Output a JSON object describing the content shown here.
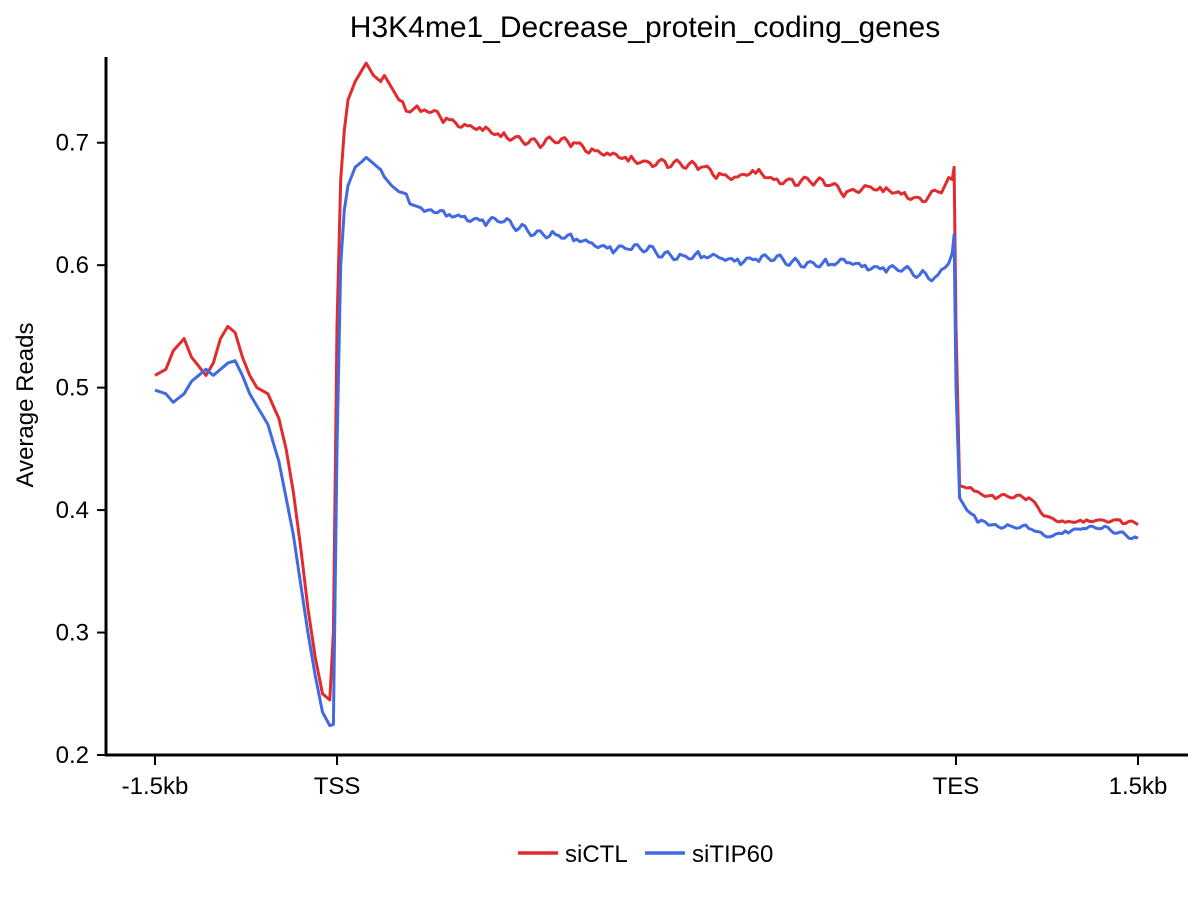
{
  "chart_data": {
    "type": "line",
    "title": "H3K4me1_Decrease_protein_coding_genes",
    "xlabel": "",
    "ylabel": "Average Reads",
    "x_ticks": [
      {
        "label": "-1.5kb",
        "pos": 0
      },
      {
        "label": "TSS",
        "pos": 50
      },
      {
        "label": "TES",
        "pos": 220
      },
      {
        "label": "1.5kb",
        "pos": 270
      }
    ],
    "x_range": [
      0,
      270
    ],
    "y_ticks": [
      0.2,
      0.3,
      0.4,
      0.5,
      0.6,
      0.7
    ],
    "ylim": [
      0.2,
      0.77
    ],
    "grid": false,
    "legend_position": "bottom",
    "series": [
      {
        "name": "siCTL",
        "color": "#e02b2f",
        "x": [
          0,
          3,
          5,
          8,
          10,
          14,
          16,
          18,
          20,
          22,
          24,
          26,
          28,
          31,
          34,
          36,
          38,
          40,
          42,
          44,
          46,
          48,
          49,
          50,
          51,
          52,
          53,
          55,
          57,
          58,
          60,
          62,
          63,
          65,
          67,
          70,
          72,
          75,
          80,
          85,
          90,
          95,
          100,
          105,
          110,
          115,
          120,
          125,
          130,
          135,
          140,
          145,
          150,
          155,
          160,
          165,
          170,
          175,
          180,
          185,
          190,
          195,
          200,
          205,
          210,
          215,
          219,
          219.5,
          220,
          221,
          223,
          226,
          230,
          235,
          240,
          245,
          250,
          255,
          260,
          265,
          270
        ],
        "values": [
          0.51,
          0.515,
          0.53,
          0.54,
          0.525,
          0.51,
          0.52,
          0.54,
          0.55,
          0.545,
          0.525,
          0.51,
          0.5,
          0.495,
          0.475,
          0.45,
          0.415,
          0.37,
          0.32,
          0.28,
          0.25,
          0.245,
          0.3,
          0.55,
          0.67,
          0.71,
          0.735,
          0.75,
          0.76,
          0.765,
          0.755,
          0.75,
          0.755,
          0.745,
          0.735,
          0.725,
          0.73,
          0.725,
          0.72,
          0.715,
          0.71,
          0.705,
          0.705,
          0.7,
          0.7,
          0.7,
          0.695,
          0.69,
          0.685,
          0.685,
          0.685,
          0.68,
          0.68,
          0.675,
          0.672,
          0.675,
          0.67,
          0.67,
          0.668,
          0.665,
          0.66,
          0.665,
          0.66,
          0.658,
          0.655,
          0.66,
          0.67,
          0.68,
          0.55,
          0.42,
          0.418,
          0.415,
          0.412,
          0.41,
          0.41,
          0.395,
          0.39,
          0.39,
          0.392,
          0.392,
          0.388
        ]
      },
      {
        "name": "siTIP60",
        "color": "#4169e1",
        "x": [
          0,
          3,
          5,
          8,
          10,
          14,
          16,
          18,
          20,
          22,
          24,
          26,
          28,
          31,
          34,
          36,
          38,
          40,
          42,
          44,
          46,
          48,
          49,
          50,
          51,
          52,
          53,
          55,
          57,
          58,
          60,
          62,
          63,
          65,
          67,
          70,
          72,
          75,
          80,
          85,
          90,
          95,
          100,
          105,
          110,
          115,
          120,
          125,
          130,
          135,
          140,
          145,
          150,
          155,
          160,
          165,
          170,
          175,
          180,
          185,
          190,
          195,
          200,
          205,
          210,
          215,
          219,
          219.5,
          220,
          221,
          223,
          226,
          230,
          235,
          240,
          245,
          250,
          255,
          260,
          265,
          270
        ],
        "values": [
          0.498,
          0.495,
          0.488,
          0.495,
          0.505,
          0.515,
          0.51,
          0.515,
          0.52,
          0.522,
          0.51,
          0.495,
          0.485,
          0.47,
          0.44,
          0.41,
          0.38,
          0.34,
          0.3,
          0.265,
          0.235,
          0.224,
          0.225,
          0.45,
          0.6,
          0.645,
          0.665,
          0.68,
          0.685,
          0.688,
          0.683,
          0.678,
          0.672,
          0.665,
          0.66,
          0.65,
          0.648,
          0.645,
          0.64,
          0.64,
          0.637,
          0.635,
          0.63,
          0.628,
          0.625,
          0.62,
          0.618,
          0.615,
          0.613,
          0.612,
          0.61,
          0.608,
          0.606,
          0.606,
          0.605,
          0.605,
          0.604,
          0.603,
          0.603,
          0.6,
          0.602,
          0.6,
          0.598,
          0.595,
          0.592,
          0.592,
          0.61,
          0.625,
          0.5,
          0.41,
          0.4,
          0.39,
          0.388,
          0.387,
          0.385,
          0.378,
          0.383,
          0.385,
          0.385,
          0.382,
          0.377
        ]
      }
    ]
  }
}
